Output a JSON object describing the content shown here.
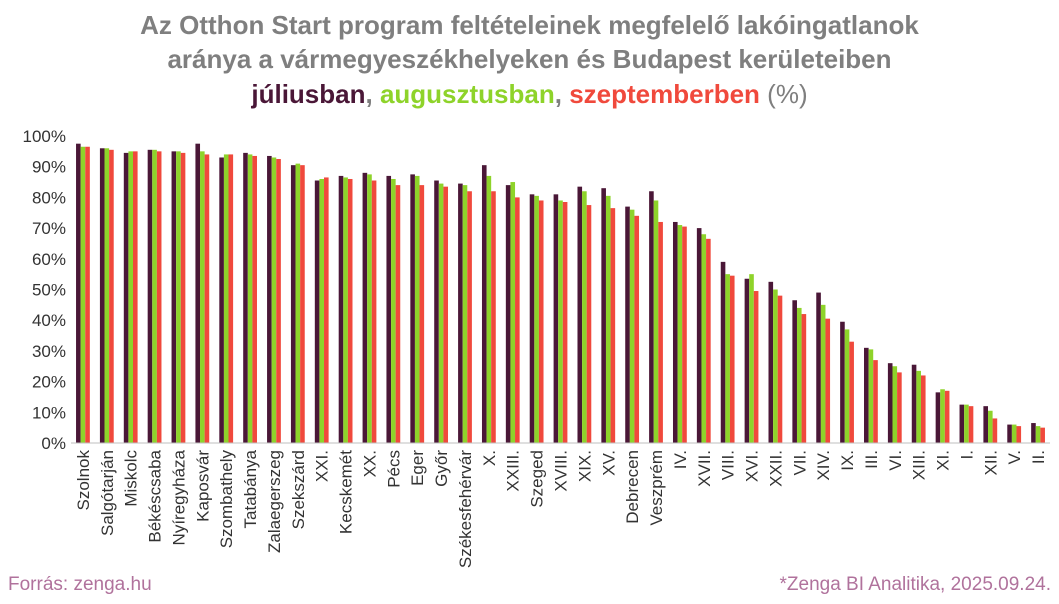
{
  "title": {
    "line1": "Az Otthon Start program feltételeinek megfelelő lakóingatlanok",
    "line2": "aránya a vármegyeszékhelyeken és Budapest kerületeiben",
    "jul": "júliusban",
    "sep1": ", ",
    "aug": "augusztusban",
    "sep2": ", ",
    "sep": "szeptemberben",
    "unit": " (%)"
  },
  "footer": {
    "source": "Forrás: zenga.hu",
    "credit": "*Zenga BI Analitika, 2025.09.24."
  },
  "chart_data": {
    "type": "bar",
    "ylim": [
      0,
      100
    ],
    "yticks": [
      "0%",
      "10%",
      "20%",
      "30%",
      "40%",
      "50%",
      "60%",
      "70%",
      "80%",
      "90%",
      "100%"
    ],
    "ytick_values": [
      0,
      10,
      20,
      30,
      40,
      50,
      60,
      70,
      80,
      90,
      100
    ],
    "categories": [
      "Szolnok",
      "Salgótarján",
      "Miskolc",
      "Békéscsaba",
      "Nyíregyháza",
      "Kaposvár",
      "Szombathely",
      "Tatabánya",
      "Zalaegerszeg",
      "Szekszárd",
      "XXI.",
      "Kecskemét",
      "XX.",
      "Pécs",
      "Eger",
      "Győr",
      "Székesfehérvár",
      "X.",
      "XXIII.",
      "Szeged",
      "XVIII.",
      "XIX.",
      "XV.",
      "Debrecen",
      "Veszprém",
      "IV.",
      "XVII.",
      "VIII.",
      "XVI.",
      "XXII.",
      "VII.",
      "XIV.",
      "IX.",
      "III.",
      "VI.",
      "XIII.",
      "XI.",
      "I.",
      "XII.",
      "V.",
      "II."
    ],
    "series": [
      {
        "name": "júliusban",
        "color": "#4a1737",
        "values": [
          97.5,
          96,
          94.5,
          95.5,
          95,
          97.5,
          93,
          94.5,
          93.5,
          90.5,
          85.5,
          87,
          88,
          87,
          87.5,
          85.5,
          84.5,
          90.5,
          84,
          81,
          81,
          83.5,
          83,
          77,
          82,
          72,
          70,
          59,
          53.5,
          52.5,
          46.5,
          49,
          39.5,
          31,
          26,
          25.5,
          16.5,
          12.5,
          12,
          6,
          6.5
        ]
      },
      {
        "name": "augusztusban",
        "color": "#8ed32a",
        "values": [
          96.5,
          96,
          95,
          95.5,
          95,
          95,
          94,
          94,
          93,
          91,
          86,
          86.5,
          87.5,
          86,
          87,
          84.5,
          84,
          87,
          85,
          80.5,
          79,
          82,
          80.5,
          76,
          79,
          71,
          68,
          55,
          55,
          50,
          44,
          45,
          37,
          30.5,
          25,
          23.5,
          17.5,
          12.5,
          10.5,
          6,
          5.5
        ]
      },
      {
        "name": "szeptemberben",
        "color": "#f0493c",
        "values": [
          96.5,
          95.5,
          95,
          95,
          94.5,
          94,
          94,
          93.5,
          92.5,
          90.5,
          86.5,
          86,
          85.5,
          84,
          84,
          83.5,
          82,
          82,
          80,
          79,
          78.5,
          77.5,
          76.5,
          74,
          72,
          70.5,
          66.5,
          54.5,
          49.5,
          48,
          42,
          40.5,
          33,
          27,
          23,
          22,
          17,
          12,
          8,
          5.5,
          5
        ]
      }
    ]
  }
}
